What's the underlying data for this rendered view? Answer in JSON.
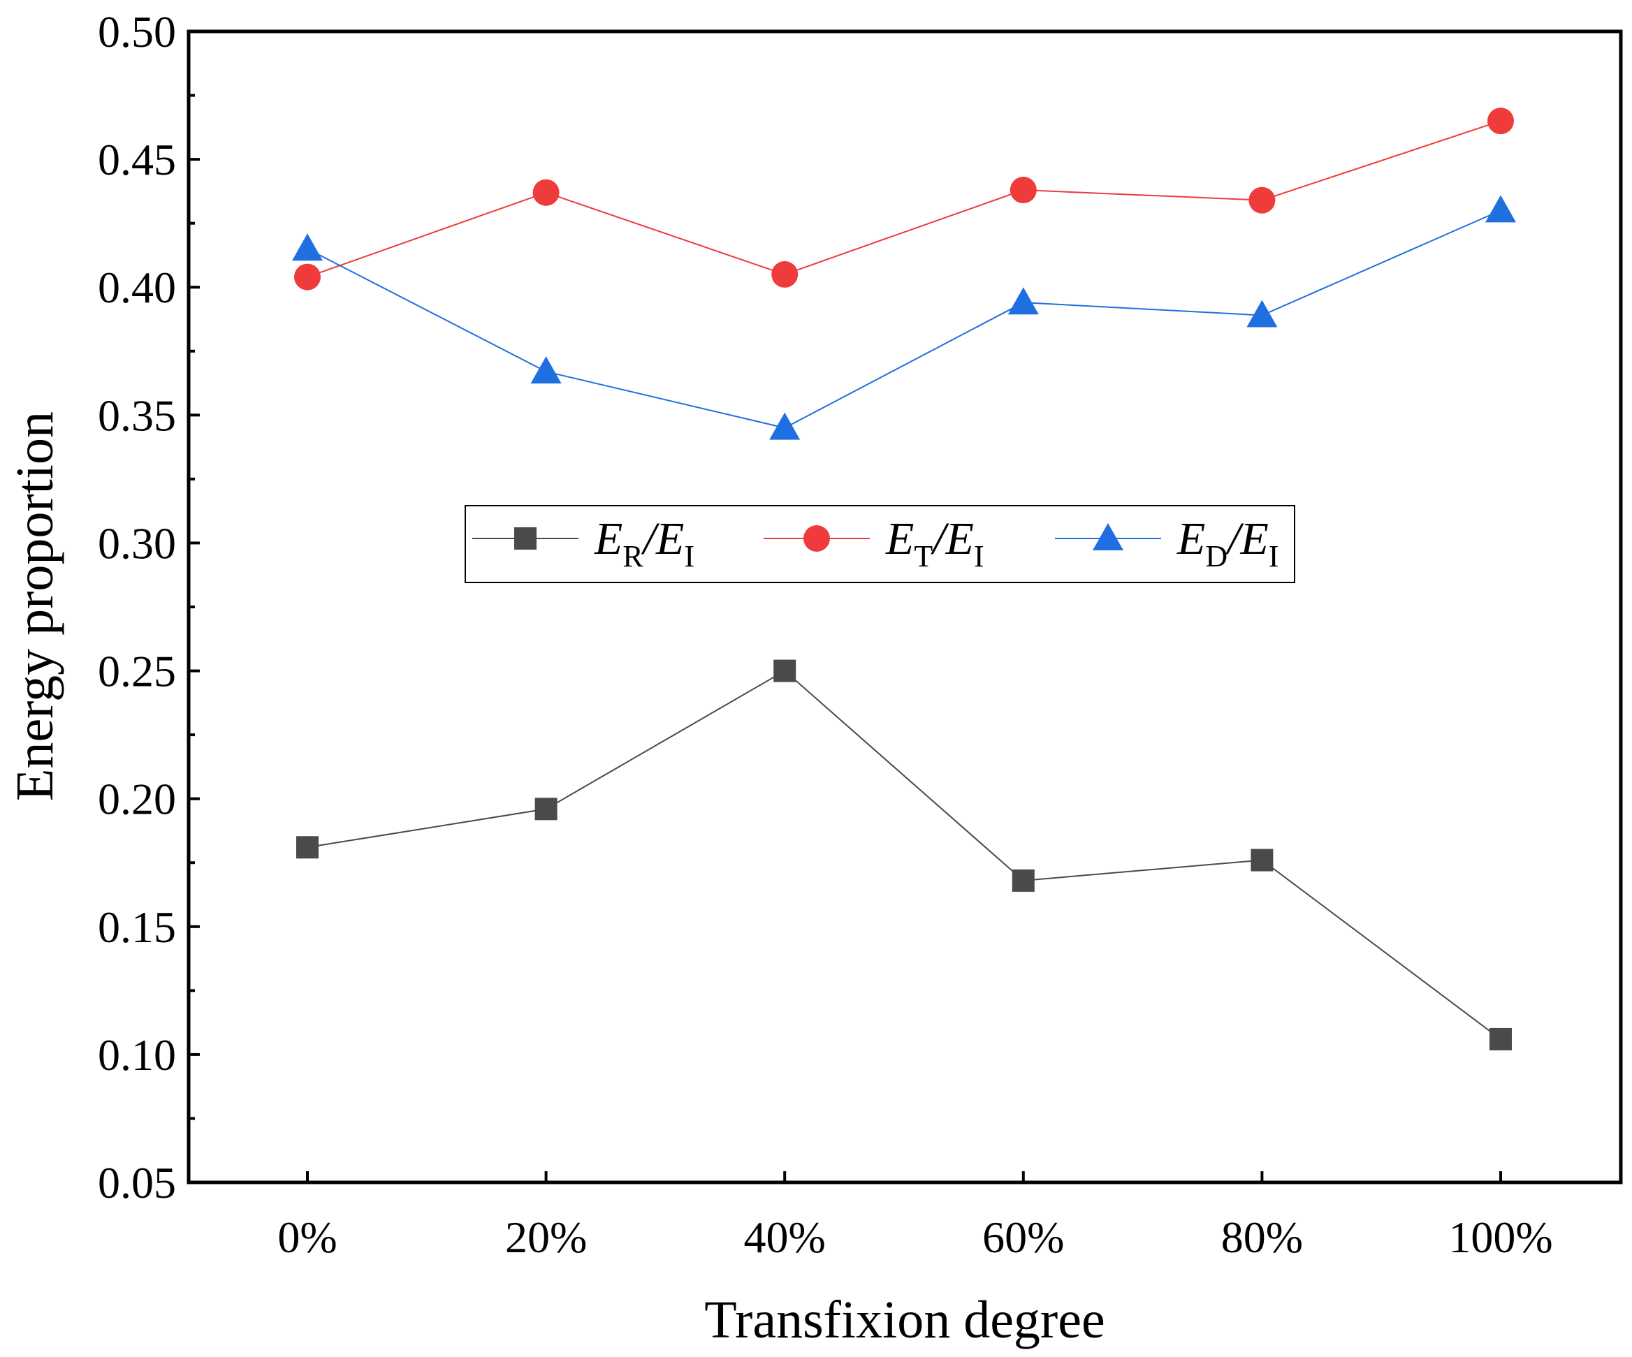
{
  "chart_data": {
    "type": "line",
    "title": "",
    "xlabel": "Transfixion degree",
    "ylabel": "Energy proportion",
    "categories": [
      "0%",
      "20%",
      "40%",
      "60%",
      "80%",
      "100%"
    ],
    "ylim": [
      0.05,
      0.5
    ],
    "yticks": [
      "0.05",
      "0.10",
      "0.15",
      "0.20",
      "0.25",
      "0.30",
      "0.35",
      "0.40",
      "0.45",
      "0.50"
    ],
    "grid": false,
    "legend_position": "center",
    "series": [
      {
        "name": "E_R/E_I",
        "legend_main1": "E",
        "legend_sub1": "R",
        "legend_slash": "/",
        "legend_main2": "E",
        "legend_sub2": "I",
        "marker": "square",
        "color": "#4a4a4a",
        "values": [
          0.181,
          0.196,
          0.25,
          0.168,
          0.176,
          0.106
        ]
      },
      {
        "name": "E_T/E_I",
        "legend_main1": "E",
        "legend_sub1": "T",
        "legend_slash": "/",
        "legend_main2": "E",
        "legend_sub2": "I",
        "marker": "circle",
        "color": "#ee3b3b",
        "values": [
          0.404,
          0.437,
          0.405,
          0.438,
          0.434,
          0.465
        ]
      },
      {
        "name": "E_D/E_I",
        "legend_main1": "E",
        "legend_sub1": "D",
        "legend_slash": "/",
        "legend_main2": "E",
        "legend_sub2": "I",
        "marker": "triangle",
        "color": "#1f6fe0",
        "values": [
          0.415,
          0.367,
          0.345,
          0.394,
          0.389,
          0.43
        ]
      }
    ]
  }
}
